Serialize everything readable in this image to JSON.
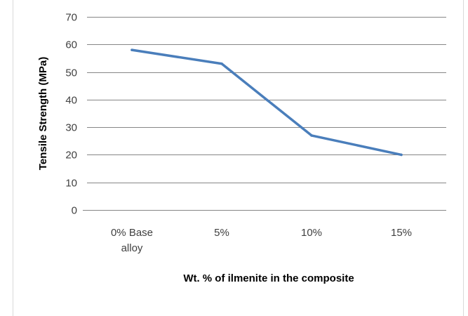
{
  "chart_data": {
    "type": "line",
    "categories": [
      "0% Base alloy",
      "5%",
      "10%",
      "15%"
    ],
    "category_lines": [
      [
        "0% Base",
        "alloy"
      ],
      [
        "5%"
      ],
      [
        "10%"
      ],
      [
        "15%"
      ]
    ],
    "series": [
      {
        "values": [
          58,
          53,
          27,
          20
        ],
        "color": "#4a7ebb"
      }
    ],
    "title": "",
    "xlabel": "Wt. % of ilmenite in the composite",
    "ylabel": "Tensile Strength (MPa)",
    "ylim": [
      0,
      70
    ],
    "yticks": [
      0,
      10,
      20,
      30,
      40,
      50,
      60,
      70
    ],
    "grid": true,
    "gridline_color": "#868686",
    "legend": "none"
  }
}
